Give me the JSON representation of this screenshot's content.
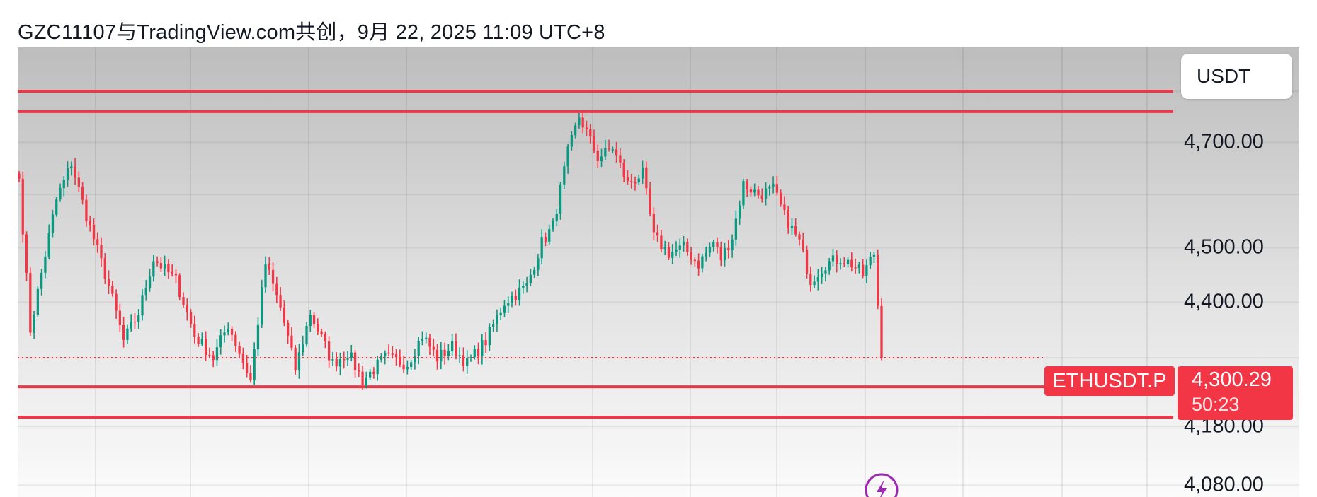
{
  "caption": "GZC11107与TradingView.com共创，9月 22, 2025 11:09 UTC+8",
  "currency_button": "USDT",
  "price_axis": {
    "labels": [
      {
        "text": "4,700.00",
        "value": 4700
      },
      {
        "text": "4,500.00",
        "value": 4500
      },
      {
        "text": "4,400.00",
        "value": 4400
      },
      {
        "text": "4,180.00",
        "value": 4180
      },
      {
        "text": "4,080.00",
        "value": 4080
      }
    ]
  },
  "symbol_tag": "ETHUSDT.P",
  "last_price": {
    "value": "4,300.29",
    "countdown": "50:23"
  },
  "colors": {
    "up": "#089981",
    "down": "#f23645",
    "hline": "#e8394a",
    "accent_icon": "#9c27b0"
  },
  "icons": [
    "lightning-icon"
  ],
  "chart_data": {
    "type": "candlestick",
    "title": "",
    "ylim": [
      4060,
      4888
    ],
    "log_scale": true,
    "grid": true,
    "horizontal_lines": [
      4800,
      4760,
      4249,
      4196
    ],
    "last_close": 4300.29,
    "key_points": [
      {
        "i": 0,
        "close": 4630
      },
      {
        "i": 3,
        "close": 4350
      },
      {
        "i": 10,
        "close": 4590
      },
      {
        "i": 14,
        "close": 4660
      },
      {
        "i": 18,
        "close": 4560
      },
      {
        "i": 24,
        "close": 4430
      },
      {
        "i": 28,
        "close": 4330
      },
      {
        "i": 32,
        "close": 4380
      },
      {
        "i": 36,
        "close": 4480
      },
      {
        "i": 42,
        "close": 4440
      },
      {
        "i": 47,
        "close": 4340
      },
      {
        "i": 52,
        "close": 4300
      },
      {
        "i": 56,
        "close": 4360
      },
      {
        "i": 62,
        "close": 4260
      },
      {
        "i": 66,
        "close": 4470
      },
      {
        "i": 70,
        "close": 4390
      },
      {
        "i": 74,
        "close": 4280
      },
      {
        "i": 78,
        "close": 4380
      },
      {
        "i": 84,
        "close": 4290
      },
      {
        "i": 88,
        "close": 4310
      },
      {
        "i": 92,
        "close": 4260
      },
      {
        "i": 98,
        "close": 4300
      },
      {
        "i": 104,
        "close": 4290
      },
      {
        "i": 108,
        "close": 4340
      },
      {
        "i": 112,
        "close": 4300
      },
      {
        "i": 116,
        "close": 4320
      },
      {
        "i": 120,
        "close": 4290
      },
      {
        "i": 125,
        "close": 4330
      },
      {
        "i": 130,
        "close": 4400
      },
      {
        "i": 136,
        "close": 4430
      },
      {
        "i": 140,
        "close": 4510
      },
      {
        "i": 143,
        "close": 4540
      },
      {
        "i": 147,
        "close": 4680
      },
      {
        "i": 150,
        "close": 4750
      },
      {
        "i": 152,
        "close": 4720
      },
      {
        "i": 155,
        "close": 4670
      },
      {
        "i": 159,
        "close": 4690
      },
      {
        "i": 163,
        "close": 4620
      },
      {
        "i": 167,
        "close": 4640
      },
      {
        "i": 170,
        "close": 4520
      },
      {
        "i": 174,
        "close": 4490
      },
      {
        "i": 178,
        "close": 4500
      },
      {
        "i": 182,
        "close": 4470
      },
      {
        "i": 186,
        "close": 4510
      },
      {
        "i": 188,
        "close": 4480
      },
      {
        "i": 191,
        "close": 4520
      },
      {
        "i": 194,
        "close": 4620
      },
      {
        "i": 198,
        "close": 4600
      },
      {
        "i": 202,
        "close": 4610
      },
      {
        "i": 205,
        "close": 4560
      },
      {
        "i": 209,
        "close": 4510
      },
      {
        "i": 212,
        "close": 4440
      },
      {
        "i": 216,
        "close": 4470
      },
      {
        "i": 220,
        "close": 4480
      },
      {
        "i": 223,
        "close": 4470
      },
      {
        "i": 226,
        "close": 4450
      },
      {
        "i": 229,
        "close": 4490
      },
      {
        "i": 231,
        "close": 4300
      }
    ]
  }
}
